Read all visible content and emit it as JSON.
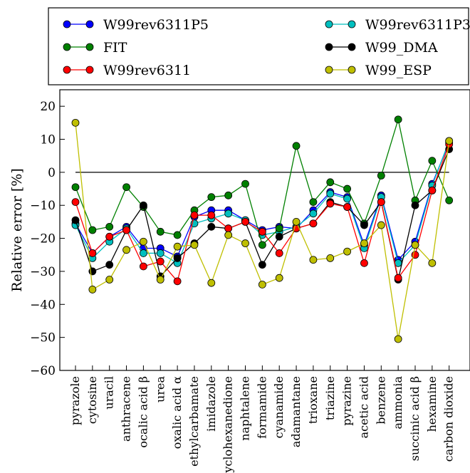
{
  "chart_data": {
    "type": "line",
    "title": "",
    "xlabel": "",
    "ylabel": "Relative error [%]",
    "ylim": [
      -60,
      25
    ],
    "yticks": [
      -60,
      -50,
      -40,
      -30,
      -20,
      -10,
      0,
      10,
      20
    ],
    "grid": false,
    "legend_position": "top",
    "reference_line": 0,
    "categories": [
      "pyrazole",
      "cytosine",
      "uracil",
      "anthracene",
      "ocalic acid β",
      "urea",
      "oxalic acid α",
      "ethylcarbamate",
      "imidazole",
      "cyclohexanedione",
      "naphtalene",
      "formamide",
      "cyanamide",
      "adamantane",
      "trioxane",
      "triazine",
      "pyrazine",
      "acetic acid",
      "benzene",
      "ammonia",
      "succinic acid β",
      "hexamine",
      "carbon dioxide"
    ],
    "series": [
      {
        "name": "W99rev6311P5",
        "color": "#0000ff",
        "values": [
          -15.5,
          -24.5,
          -19.5,
          -16.5,
          -23,
          -23,
          -25.5,
          -13.5,
          -11.5,
          -11.5,
          -14.5,
          -17.5,
          -16.5,
          -17,
          -11.5,
          -6,
          -7.5,
          -22,
          -7,
          -26.5,
          -21,
          -3.5,
          9
        ]
      },
      {
        "name": "W99rev6311P3",
        "color": "#00bfbf",
        "values": [
          -16,
          -26,
          -21,
          -17,
          -24.5,
          -24.5,
          -27.5,
          -15.5,
          -14,
          -12.5,
          -14.5,
          -19,
          -18,
          -16.5,
          -12.5,
          -6.5,
          -8,
          -23,
          -7.5,
          -27.5,
          -22,
          -4,
          9.5
        ]
      },
      {
        "name": "FIT",
        "color": "#008000",
        "values": [
          -4.5,
          -17.5,
          -16.5,
          -4.5,
          -10.5,
          -18,
          -19,
          -11.5,
          -7.5,
          -7,
          -3.5,
          -22,
          -17,
          8,
          -9,
          -3,
          -5,
          -15.5,
          -1,
          16,
          -8.5,
          3.5,
          -8.5
        ]
      },
      {
        "name": "W99_DMA",
        "color": "#000000",
        "values": [
          -14.5,
          -30,
          -28,
          -17.5,
          -10,
          -31.5,
          -26,
          -21.5,
          -16.5,
          -17,
          -15,
          -28,
          -19.5,
          -17,
          -15.5,
          -9,
          -10.5,
          -16,
          -9,
          -32.5,
          -10,
          -5.5,
          7
        ]
      },
      {
        "name": "W99rev6311",
        "color": "#ff0000",
        "values": [
          -9,
          -24.5,
          -19.5,
          -17.5,
          -28.5,
          -27,
          -33,
          -13,
          -13,
          -17,
          -15,
          -18,
          -24.5,
          -17,
          -15.5,
          -9.5,
          -10.5,
          -27.5,
          -9,
          -32,
          -25,
          -5.5,
          8.5
        ]
      },
      {
        "name": "W99_ESP",
        "color": "#bfbf00",
        "values": [
          15,
          -35.5,
          -32.5,
          -23.5,
          -21,
          -32.5,
          -22.5,
          -22,
          -33.5,
          -19,
          -21.5,
          -34,
          -32,
          -15,
          -26.5,
          -26,
          -24,
          -21.5,
          -16,
          -50.5,
          -22,
          -27.5,
          9.5
        ]
      }
    ],
    "legend_layout": [
      [
        "W99rev6311P5",
        "W99rev6311P3"
      ],
      [
        "FIT",
        "W99_DMA"
      ],
      [
        "W99rev6311",
        "W99_ESP"
      ]
    ]
  }
}
